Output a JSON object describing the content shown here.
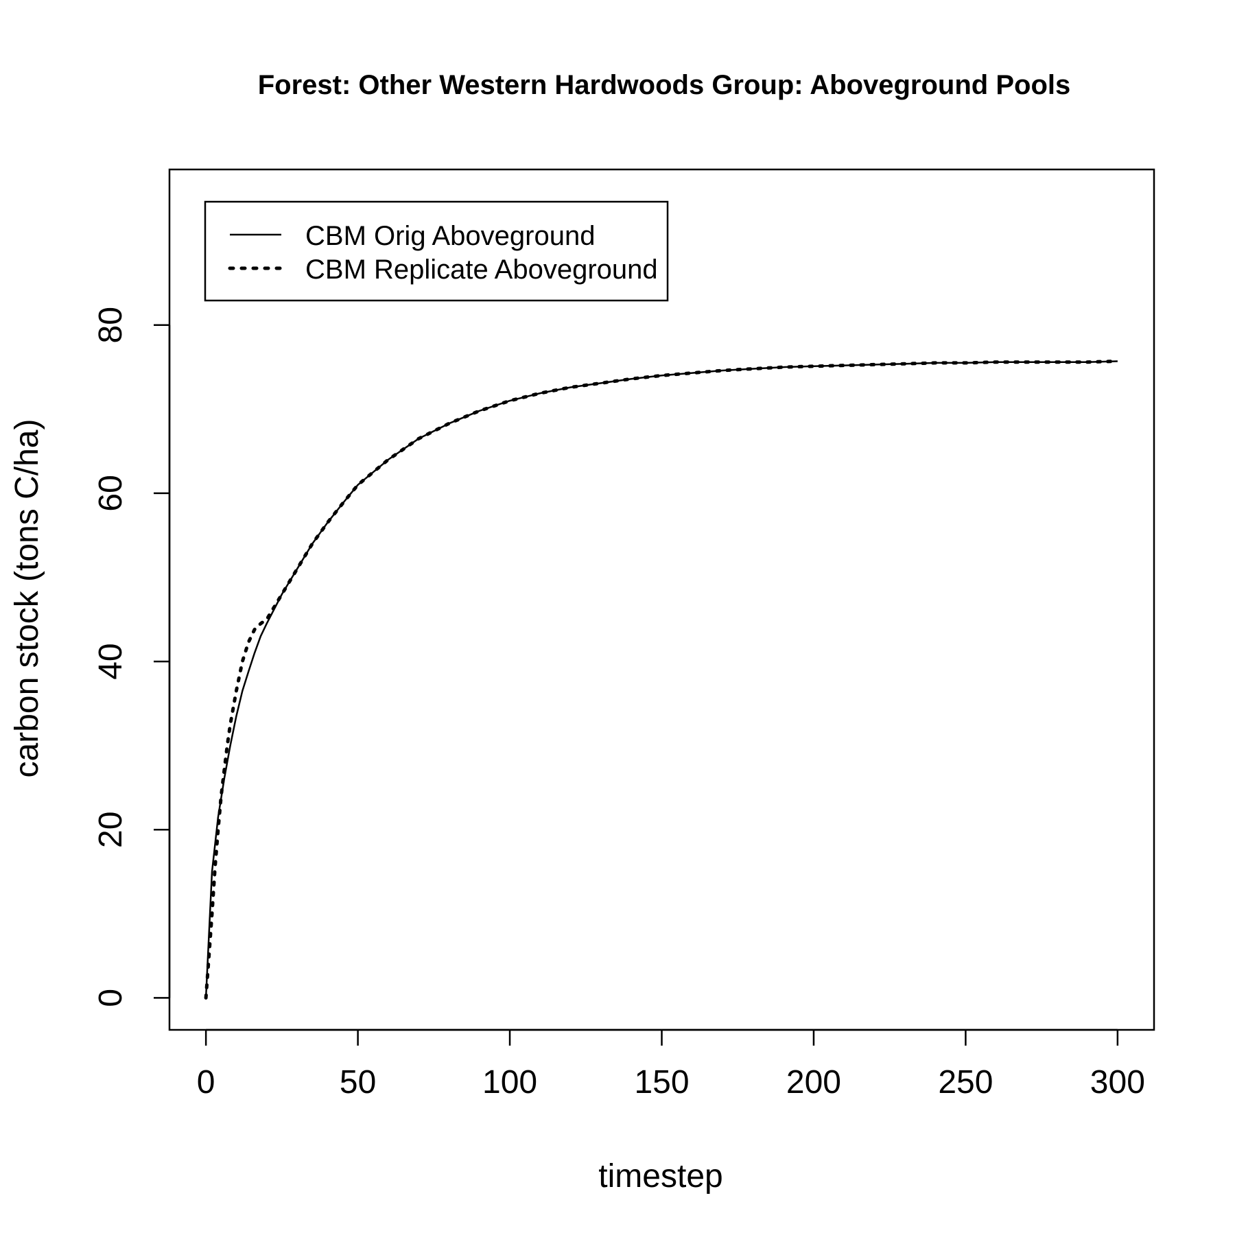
{
  "chart_data": {
    "type": "line",
    "title": "Forest: Other Western Hardwoods Group: Aboveground Pools",
    "xlabel": "timestep",
    "ylabel": "carbon stock (tons C/ha)",
    "xlim": [
      -12,
      312
    ],
    "ylim": [
      -3.8,
      98.5
    ],
    "xticks": [
      0,
      50,
      100,
      150,
      200,
      250,
      300
    ],
    "yticks": [
      0,
      20,
      40,
      60,
      80
    ],
    "grid": false,
    "legend_position": "top-left",
    "series": [
      {
        "name": "CBM Orig Aboveground",
        "line_style": "solid",
        "color": "#000000",
        "x": [
          0,
          2,
          4,
          6,
          8,
          10,
          12,
          14,
          16,
          18,
          20,
          25,
          30,
          35,
          40,
          45,
          50,
          55,
          60,
          70,
          80,
          90,
          100,
          110,
          120,
          130,
          140,
          150,
          160,
          170,
          180,
          190,
          200,
          210,
          220,
          230,
          240,
          250,
          260,
          270,
          280,
          290,
          300
        ],
        "y": [
          0,
          15,
          21.5,
          26,
          30,
          33.5,
          36.5,
          38.8,
          41,
          43,
          44.5,
          48,
          51,
          54,
          56.5,
          58.8,
          61,
          62.5,
          64,
          66.5,
          68.3,
          69.8,
          71,
          71.9,
          72.6,
          73.1,
          73.6,
          74,
          74.3,
          74.6,
          74.8,
          75,
          75.1,
          75.2,
          75.3,
          75.4,
          75.5,
          75.5,
          75.6,
          75.6,
          75.6,
          75.6,
          75.7
        ]
      },
      {
        "name": "CBM Replicate Aboveground",
        "line_style": "dotted",
        "color": "#000000",
        "x": [
          0,
          1,
          2,
          3,
          4,
          5,
          6,
          7,
          8,
          9,
          10,
          12,
          14,
          16,
          18,
          20,
          25,
          30,
          35,
          40,
          45,
          50,
          55,
          60,
          70,
          80,
          90,
          100,
          110,
          120,
          130,
          140,
          150,
          160,
          170,
          180,
          190,
          200,
          210,
          220,
          230,
          240,
          250,
          260,
          270,
          280,
          290,
          300
        ],
        "y": [
          0,
          5,
          10,
          15.5,
          20,
          24,
          27,
          30,
          32.5,
          34.5,
          36.5,
          40,
          42.3,
          43.8,
          44.5,
          45,
          48,
          51,
          54,
          56.5,
          58.8,
          61,
          62.5,
          64,
          66.5,
          68.3,
          69.8,
          71,
          71.9,
          72.6,
          73.1,
          73.6,
          74,
          74.3,
          74.6,
          74.8,
          75,
          75.1,
          75.2,
          75.3,
          75.4,
          75.5,
          75.5,
          75.6,
          75.6,
          75.6,
          75.6,
          75.7
        ]
      }
    ]
  }
}
